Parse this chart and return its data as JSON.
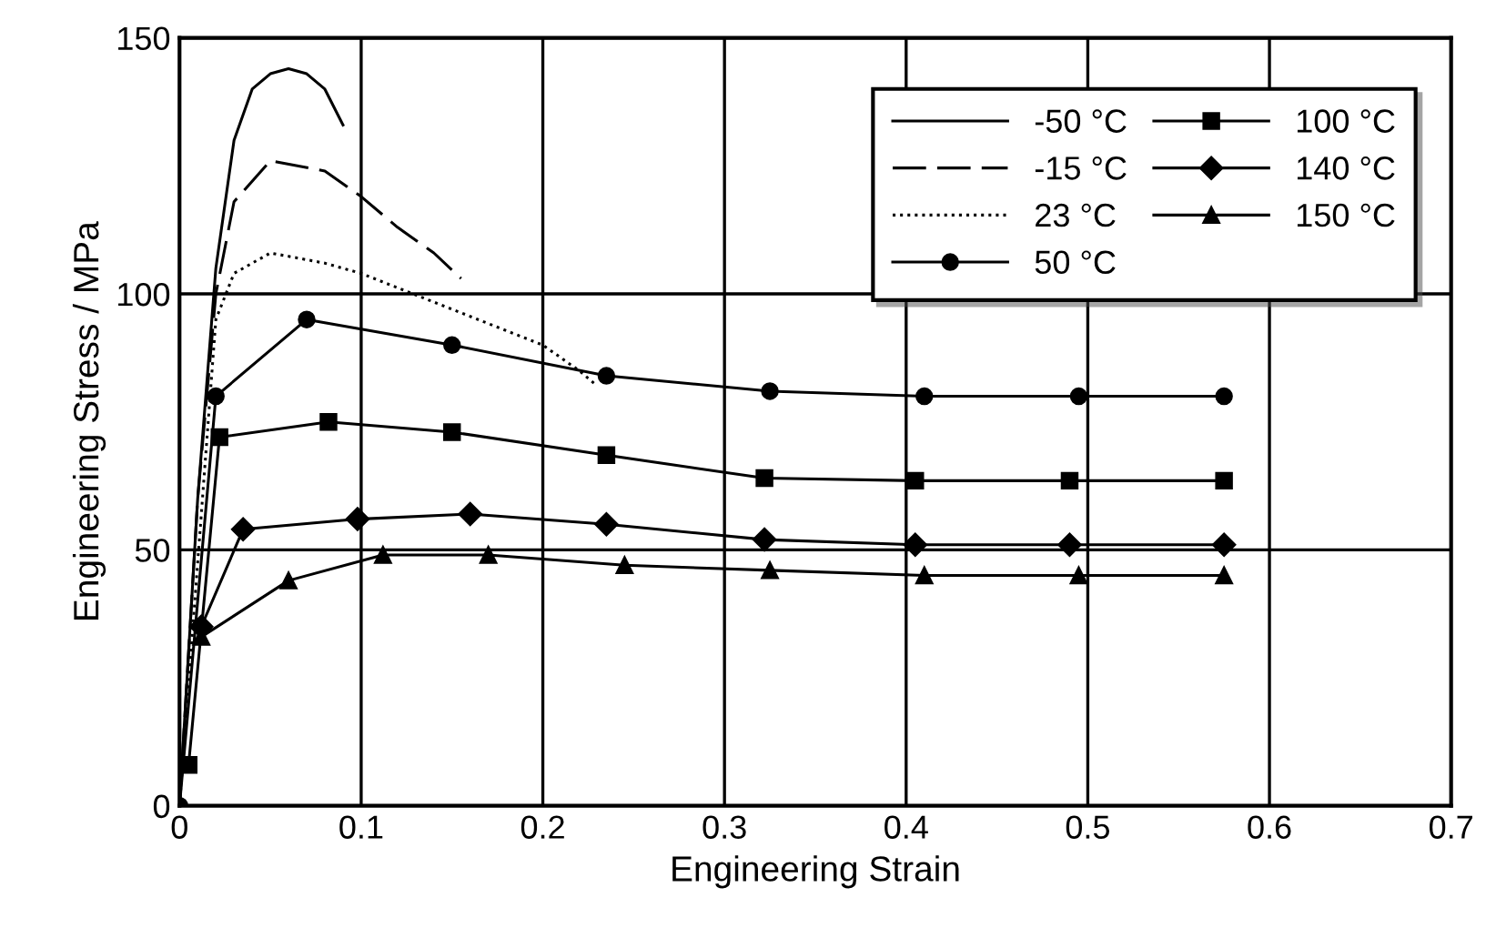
{
  "chart_data": {
    "type": "line",
    "xlabel": "Engineering Strain",
    "ylabel": "Engineering Stress / MPa",
    "xlim": [
      0,
      0.7
    ],
    "ylim": [
      0,
      150
    ],
    "xticks": [
      0,
      0.1,
      0.2,
      0.3,
      0.4,
      0.5,
      0.6,
      0.7
    ],
    "yticks": [
      0,
      50,
      100,
      150
    ],
    "grid": true,
    "legend": "top right",
    "series": [
      {
        "name": "-50 °C",
        "color": "#000000",
        "line_style": "solid",
        "marker": "none",
        "x": [
          0,
          0.01,
          0.02,
          0.03,
          0.04,
          0.05,
          0.06,
          0.07,
          0.08,
          0.09
        ],
        "values": [
          0,
          60,
          105,
          130,
          140,
          143,
          144,
          143,
          140,
          133
        ]
      },
      {
        "name": "-15 °C",
        "color": "#000000",
        "line_style": "dashed",
        "marker": "none",
        "x": [
          0,
          0.01,
          0.02,
          0.03,
          0.05,
          0.08,
          0.1,
          0.12,
          0.14,
          0.155
        ],
        "values": [
          0,
          60,
          100,
          118,
          126,
          124,
          119,
          113,
          108,
          103
        ]
      },
      {
        "name": "23 °C",
        "color": "#000000",
        "line_style": "dotted",
        "marker": "none",
        "x": [
          0,
          0.02,
          0.03,
          0.05,
          0.08,
          0.1,
          0.15,
          0.2,
          0.22,
          0.23
        ],
        "values": [
          0,
          95,
          104,
          108,
          106,
          104,
          97,
          90,
          85,
          82
        ]
      },
      {
        "name": "50 °C",
        "color": "#000000",
        "line_style": "solid",
        "marker": "circle",
        "x": [
          0,
          0.02,
          0.07,
          0.15,
          0.235,
          0.325,
          0.41,
          0.495,
          0.575
        ],
        "values": [
          0,
          80,
          95,
          90,
          84,
          81,
          80,
          80,
          80
        ]
      },
      {
        "name": "100 °C",
        "color": "#000000",
        "line_style": "solid",
        "marker": "square",
        "x": [
          0.005,
          0.022,
          0.082,
          0.15,
          0.235,
          0.322,
          0.405,
          0.49,
          0.575
        ],
        "values": [
          8,
          72,
          75,
          73,
          68.5,
          64,
          63.5,
          63.5,
          63.5
        ]
      },
      {
        "name": "140 °C",
        "color": "#000000",
        "line_style": "solid",
        "marker": "diamond",
        "x": [
          0.012,
          0.035,
          0.098,
          0.16,
          0.235,
          0.322,
          0.405,
          0.49,
          0.575
        ],
        "values": [
          35,
          54,
          56,
          57,
          55,
          52,
          51,
          51,
          51
        ]
      },
      {
        "name": "150 °C",
        "color": "#000000",
        "line_style": "solid",
        "marker": "triangle",
        "x": [
          0.012,
          0.06,
          0.112,
          0.17,
          0.245,
          0.325,
          0.41,
          0.495,
          0.575
        ],
        "values": [
          33,
          44,
          49,
          49,
          47,
          46,
          45,
          45,
          45
        ]
      }
    ]
  }
}
